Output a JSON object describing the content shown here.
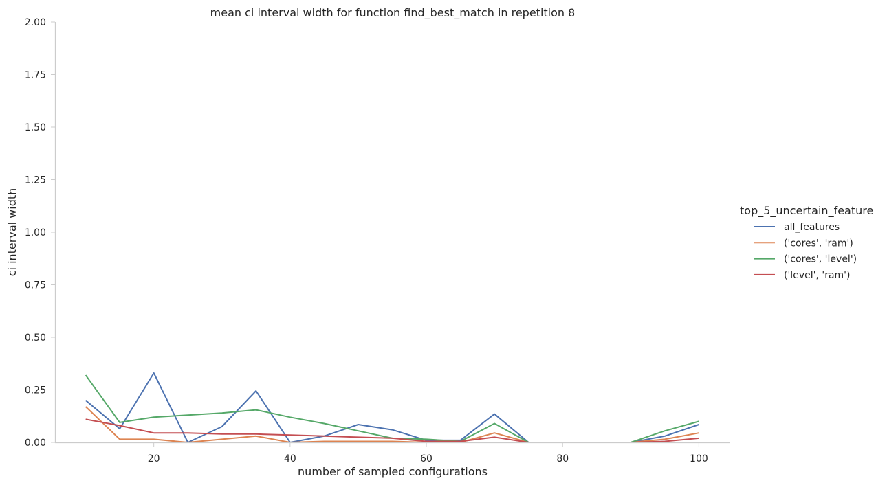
{
  "chart_data": {
    "type": "line",
    "title": "mean ci interval width for function find_best_match in repetition 8",
    "xlabel": "number of sampled configurations",
    "ylabel": "ci interval width",
    "xlim": [
      5.5,
      104.5
    ],
    "ylim": [
      0,
      2
    ],
    "xticks": [
      20,
      40,
      60,
      80,
      100
    ],
    "yticks": [
      0,
      0.25,
      0.5,
      0.75,
      1.0,
      1.25,
      1.5,
      1.75,
      2.0
    ],
    "ytick_labels": [
      "0.00",
      "0.25",
      "0.50",
      "0.75",
      "1.00",
      "1.25",
      "1.50",
      "1.75",
      "2.00"
    ],
    "grid": false,
    "legend_title": "top_5_uncertain_feature",
    "legend_position": "right",
    "x": [
      10,
      15,
      20,
      25,
      30,
      35,
      40,
      45,
      50,
      55,
      60,
      65,
      70,
      75,
      80,
      85,
      90,
      95,
      100
    ],
    "series": [
      {
        "name": "all_features",
        "color": "#4c72b0",
        "values": [
          0.2,
          0.065,
          0.33,
          0.0,
          0.075,
          0.245,
          0.0,
          0.03,
          0.085,
          0.06,
          0.01,
          0.01,
          0.135,
          0.0,
          0.0,
          0.0,
          0.0,
          0.03,
          0.085
        ]
      },
      {
        "name": "('cores', 'ram')",
        "color": "#dd8452",
        "values": [
          0.17,
          0.015,
          0.015,
          0.0,
          0.015,
          0.03,
          0.0,
          0.005,
          0.005,
          0.005,
          0.0,
          0.0,
          0.045,
          0.0,
          0.0,
          0.0,
          0.0,
          0.015,
          0.045
        ]
      },
      {
        "name": "('cores', 'level')",
        "color": "#55a868",
        "values": [
          0.32,
          0.095,
          0.12,
          0.13,
          0.14,
          0.155,
          0.12,
          0.09,
          0.055,
          0.02,
          0.015,
          0.005,
          0.09,
          0.0,
          0.0,
          0.0,
          0.0,
          0.055,
          0.1
        ]
      },
      {
        "name": "('level', 'ram')",
        "color": "#c44e52",
        "values": [
          0.11,
          0.08,
          0.045,
          0.045,
          0.04,
          0.04,
          0.035,
          0.03,
          0.025,
          0.02,
          0.005,
          0.005,
          0.025,
          0.0,
          0.0,
          0.0,
          0.0,
          0.005,
          0.02
        ]
      }
    ]
  }
}
